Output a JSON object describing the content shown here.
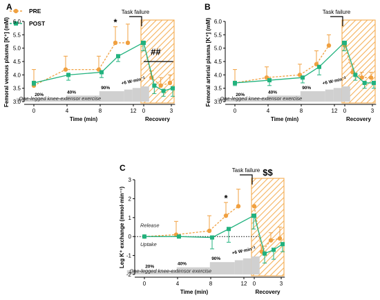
{
  "colors": {
    "pre": "#F0A040",
    "post": "#21B27E",
    "bars": "#D0D0D0",
    "recovery_hatch": "#F5B15A"
  },
  "legend": {
    "pre": "PRE",
    "post": "POST"
  },
  "common": {
    "x_ticks_exercise": [
      "0",
      "4",
      "8",
      "12"
    ],
    "x_ticks_recovery": [
      "0",
      "3"
    ],
    "xlabel": "Time (min)",
    "recovery_label": "Recovery",
    "task_failure": "Task failure",
    "exercise_label": "One-legged knee-extensor exercise",
    "stages": [
      "20%",
      "40%",
      "90%"
    ],
    "increment": "+6 W·min",
    "increment_sup": "−1"
  },
  "chart_data": [
    {
      "id": "A",
      "type": "line",
      "panel_letter": "A",
      "ylabel": "Femoral venous plasma [K⁺] (mM)",
      "ylim": [
        3.0,
        6.0
      ],
      "yticks": [
        "3.0",
        "3.5",
        "4.0",
        "4.5",
        "5.0",
        "5.5",
        "6.0"
      ],
      "annotations": {
        "star": "*",
        "hash": "##"
      },
      "series": [
        {
          "name": "PRE",
          "exercise": {
            "x": [
              0,
              4,
              8,
              10,
              11.5
            ],
            "y": [
              3.6,
              4.2,
              4.2,
              5.2,
              5.2
            ],
            "err": [
              0.6,
              0.5,
              0.5,
              0.6,
              0.7
            ]
          },
          "recovery": {
            "x": [
              0,
              1,
              2,
              3
            ],
            "y": [
              5.2,
              3.9,
              3.6,
              3.7
            ],
            "err": [
              0.0,
              0.25,
              0.3,
              0.3
            ]
          }
        },
        {
          "name": "POST",
          "exercise": {
            "x": [
              0,
              4,
              8,
              10,
              13
            ],
            "y": [
              3.7,
              4.0,
              4.1,
              4.7,
              5.2
            ],
            "err": [
              0.1,
              0.2,
              0.2,
              0.2,
              0.3
            ]
          },
          "recovery": {
            "x": [
              0,
              1,
              2,
              3
            ],
            "y": [
              5.2,
              3.6,
              3.4,
              3.5
            ],
            "err": [
              0.0,
              0.3,
              0.2,
              0.3
            ]
          }
        }
      ]
    },
    {
      "id": "B",
      "type": "line",
      "panel_letter": "B",
      "ylabel": "Femoral arterial plasma [K⁺] (mM)",
      "ylim": [
        3.0,
        6.0
      ],
      "yticks": [
        "3.0",
        "3.5",
        "4.0",
        "4.5",
        "5.0",
        "5.5",
        "6.0"
      ],
      "annotations": {},
      "series": [
        {
          "name": "PRE",
          "exercise": {
            "x": [
              0,
              4,
              8,
              10,
              11.5
            ],
            "y": [
              3.7,
              3.9,
              4.0,
              4.4,
              5.1
            ],
            "err": [
              0.5,
              0.4,
              0.4,
              0.5,
              0.4
            ]
          },
          "recovery": {
            "x": [
              0,
              1,
              2,
              3
            ],
            "y": [
              5.1,
              4.1,
              3.9,
              3.9
            ],
            "err": [
              0.0,
              0.3,
              0.2,
              0.2
            ]
          }
        },
        {
          "name": "POST",
          "exercise": {
            "x": [
              0,
              4,
              8,
              10,
              13
            ],
            "y": [
              3.7,
              3.8,
              3.9,
              4.3,
              5.2
            ],
            "err": [
              0.1,
              0.2,
              0.2,
              0.3,
              0.3
            ]
          },
          "recovery": {
            "x": [
              0,
              1,
              2,
              3
            ],
            "y": [
              5.2,
              4.0,
              3.7,
              3.7
            ],
            "err": [
              0.0,
              0.2,
              0.2,
              0.2
            ]
          }
        }
      ]
    },
    {
      "id": "C",
      "type": "line",
      "panel_letter": "C",
      "ylabel": "Leg K⁺ exchange (mmol·min⁻¹)",
      "ylim": [
        -2,
        3
      ],
      "yticks": [
        "-2",
        "-1",
        "0",
        "1",
        "2",
        "3"
      ],
      "annotations": {
        "star": "*",
        "dollar": "$$",
        "release": "Release",
        "uptake": "Uptake"
      },
      "series": [
        {
          "name": "PRE",
          "exercise": {
            "x": [
              0,
              4,
              8,
              10,
              11.5
            ],
            "y": [
              0.0,
              0.1,
              0.3,
              1.1,
              1.6
            ],
            "err": [
              0.0,
              0.7,
              0.8,
              0.7,
              0.9
            ]
          },
          "recovery": {
            "x": [
              0,
              1,
              2,
              3
            ],
            "y": [
              1.6,
              -0.8,
              -0.2,
              -0.1
            ],
            "err": [
              0.0,
              0.3,
              0.4,
              0.6
            ]
          }
        },
        {
          "name": "POST",
          "exercise": {
            "x": [
              0,
              4,
              8,
              10,
              13
            ],
            "y": [
              0.0,
              0.0,
              -0.05,
              0.4,
              1.1
            ],
            "err": [
              0.0,
              0.0,
              0.6,
              0.7,
              0.7
            ]
          },
          "recovery": {
            "x": [
              0,
              1,
              2,
              3
            ],
            "y": [
              1.1,
              -0.9,
              -0.7,
              -0.4
            ],
            "err": [
              0.0,
              0.5,
              0.5,
              0.4
            ]
          }
        }
      ]
    }
  ]
}
